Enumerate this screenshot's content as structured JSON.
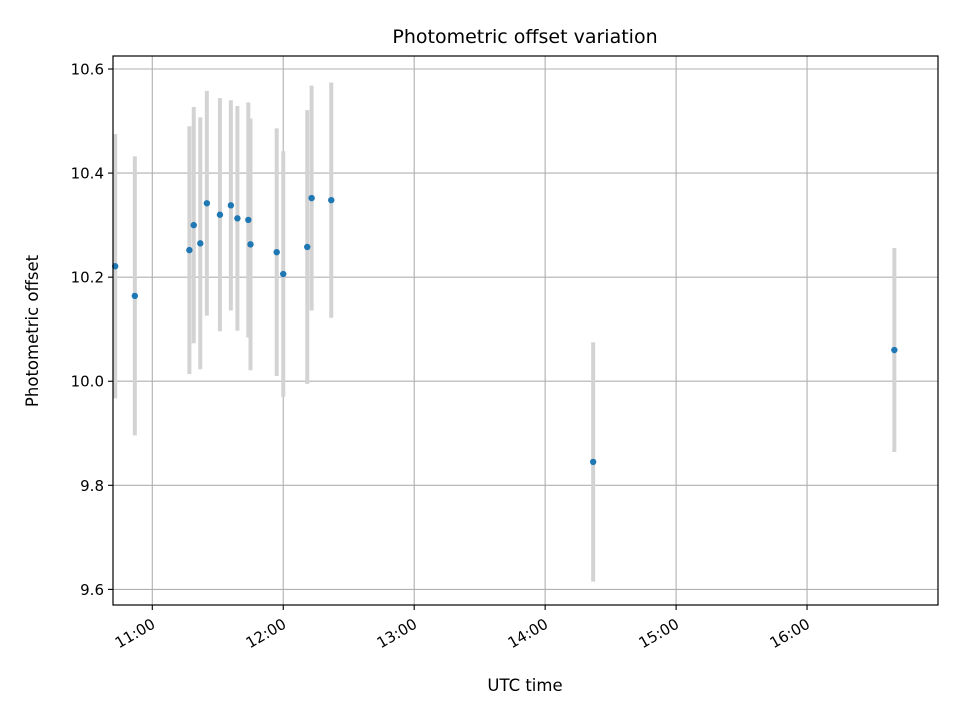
{
  "chart_data": {
    "type": "scatter",
    "title": "Photometric offset variation",
    "xlabel": "UTC time",
    "ylabel": "Photometric offset",
    "x_ticks": [
      "11:00",
      "12:00",
      "13:00",
      "14:00",
      "15:00",
      "16:00"
    ],
    "y_ticks": [
      "9.6",
      "9.8",
      "10.0",
      "10.2",
      "10.4",
      "10.6"
    ],
    "xlim": [
      "10:42",
      "17:00"
    ],
    "ylim": [
      9.57,
      10.625
    ],
    "grid": true,
    "colors": {
      "points": "#1f77b4",
      "errorbars": "#d3d3d3",
      "grid": "#b0b0b0"
    },
    "points": [
      {
        "x": "10:43",
        "y": 10.221,
        "yerr": 0.254
      },
      {
        "x": "10:52",
        "y": 10.164,
        "yerr": 0.268
      },
      {
        "x": "11:17",
        "y": 10.252,
        "yerr": 0.238
      },
      {
        "x": "11:19",
        "y": 10.3,
        "yerr": 0.227
      },
      {
        "x": "11:22",
        "y": 10.265,
        "yerr": 0.242
      },
      {
        "x": "11:25",
        "y": 10.342,
        "yerr": 0.216
      },
      {
        "x": "11:31",
        "y": 10.32,
        "yerr": 0.224
      },
      {
        "x": "11:36",
        "y": 10.338,
        "yerr": 0.202
      },
      {
        "x": "11:39",
        "y": 10.313,
        "yerr": 0.216
      },
      {
        "x": "11:44",
        "y": 10.31,
        "yerr": 0.226
      },
      {
        "x": "11:45",
        "y": 10.263,
        "yerr": 0.242
      },
      {
        "x": "11:57",
        "y": 10.248,
        "yerr": 0.238
      },
      {
        "x": "12:00",
        "y": 10.206,
        "yerr": 0.236
      },
      {
        "x": "12:11",
        "y": 10.258,
        "yerr": 0.263
      },
      {
        "x": "12:13",
        "y": 10.352,
        "yerr": 0.216
      },
      {
        "x": "12:22",
        "y": 10.348,
        "yerr": 0.226
      },
      {
        "x": "14:22",
        "y": 9.845,
        "yerr": 0.23
      },
      {
        "x": "16:40",
        "y": 10.06,
        "yerr": 0.196
      }
    ]
  }
}
